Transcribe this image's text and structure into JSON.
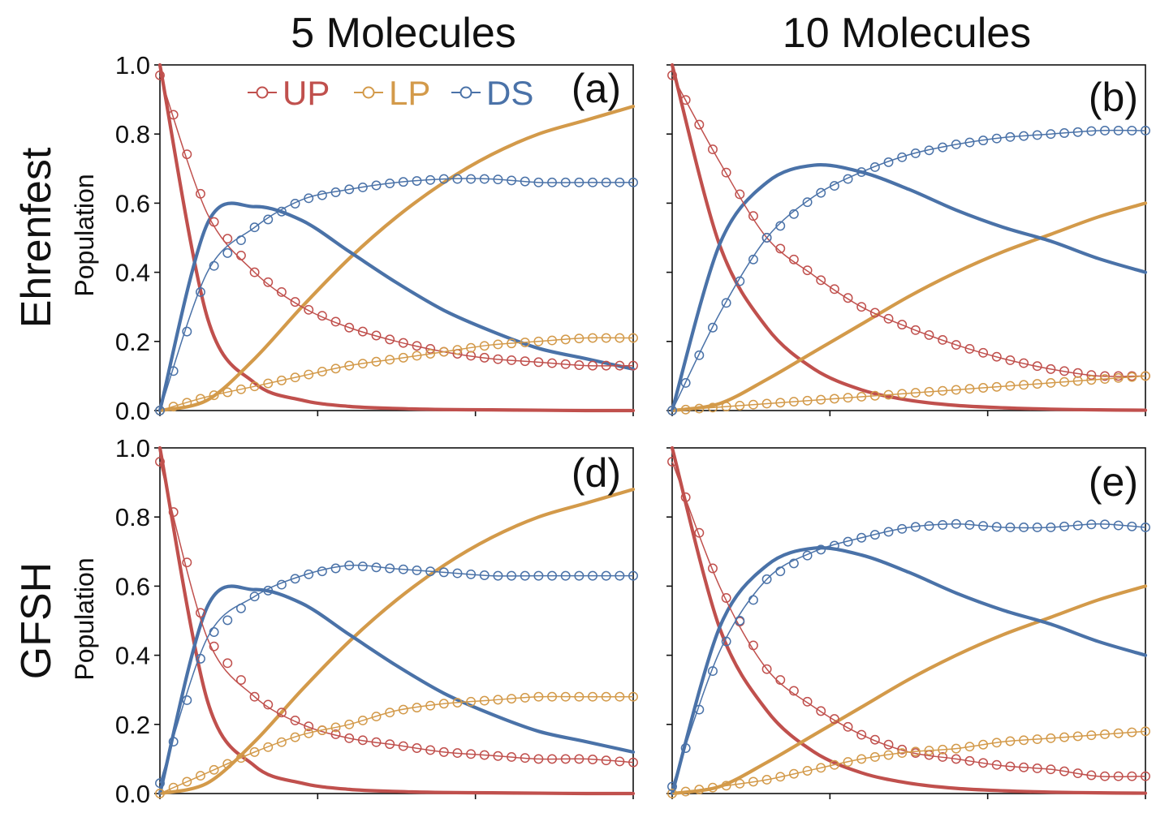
{
  "figure": {
    "col_titles": [
      "5 Molecules",
      "10 Molecules"
    ],
    "row_titles": [
      "Ehrenfest",
      "GFSH"
    ],
    "ylabel": "Population",
    "yticks": [
      "0.0",
      "0.2",
      "0.4",
      "0.6",
      "0.8",
      "1.0"
    ]
  },
  "legend": {
    "placement": "top (panel a)",
    "items": [
      {
        "label": "UP",
        "color": "#c0504d"
      },
      {
        "label": "LP",
        "color": "#d39a4a"
      },
      {
        "label": "DS",
        "color": "#4a72a8"
      }
    ]
  },
  "chart_data": [
    {
      "type": "line",
      "panel_label": "(a)",
      "ylabel": "Population",
      "ylim": [
        0,
        1
      ],
      "x": [
        0,
        0.1,
        0.2,
        0.3,
        0.4,
        0.5,
        0.6,
        0.7,
        0.8,
        0.9,
        1.0
      ],
      "series": [
        {
          "name": "UP",
          "style": "thick",
          "color": "#c0504d",
          "values": [
            1.0,
            0.27,
            0.08,
            0.03,
            0.012,
            0.006,
            0.003,
            0.002,
            0.001,
            0.0,
            0.0
          ]
        },
        {
          "name": "LP",
          "style": "thick",
          "color": "#d39a4a",
          "values": [
            0.0,
            0.03,
            0.15,
            0.3,
            0.44,
            0.56,
            0.66,
            0.74,
            0.8,
            0.84,
            0.88
          ]
        },
        {
          "name": "DS",
          "style": "thick",
          "color": "#4a72a8",
          "values": [
            0.0,
            0.54,
            0.59,
            0.55,
            0.46,
            0.37,
            0.29,
            0.23,
            0.18,
            0.15,
            0.12
          ]
        },
        {
          "name": "UP",
          "style": "marker",
          "color": "#c0504d",
          "values": [
            0.97,
            0.57,
            0.4,
            0.3,
            0.24,
            0.2,
            0.17,
            0.15,
            0.14,
            0.13,
            0.13
          ]
        },
        {
          "name": "LP",
          "style": "marker",
          "color": "#d39a4a",
          "values": [
            0.0,
            0.04,
            0.07,
            0.1,
            0.13,
            0.15,
            0.17,
            0.19,
            0.2,
            0.21,
            0.21
          ]
        },
        {
          "name": "DS",
          "style": "marker",
          "color": "#4a72a8",
          "values": [
            0.0,
            0.4,
            0.53,
            0.61,
            0.64,
            0.66,
            0.67,
            0.67,
            0.66,
            0.66,
            0.66
          ]
        }
      ]
    },
    {
      "type": "line",
      "panel_label": "(b)",
      "ylim": [
        0,
        1
      ],
      "x": [
        0,
        0.1,
        0.2,
        0.3,
        0.4,
        0.5,
        0.6,
        0.7,
        0.8,
        0.9,
        1.0
      ],
      "series": [
        {
          "name": "UP",
          "style": "thick",
          "color": "#c0504d",
          "values": [
            1.0,
            0.48,
            0.24,
            0.12,
            0.06,
            0.03,
            0.015,
            0.008,
            0.004,
            0.002,
            0.001
          ]
        },
        {
          "name": "LP",
          "style": "thick",
          "color": "#d39a4a",
          "values": [
            0.0,
            0.02,
            0.09,
            0.17,
            0.25,
            0.33,
            0.4,
            0.46,
            0.51,
            0.56,
            0.6
          ]
        },
        {
          "name": "DS",
          "style": "thick",
          "color": "#4a72a8",
          "values": [
            0.0,
            0.48,
            0.66,
            0.71,
            0.69,
            0.64,
            0.58,
            0.53,
            0.49,
            0.44,
            0.4
          ]
        },
        {
          "name": "UP",
          "style": "marker",
          "color": "#c0504d",
          "values": [
            0.97,
            0.72,
            0.5,
            0.39,
            0.3,
            0.24,
            0.19,
            0.15,
            0.12,
            0.1,
            0.1
          ]
        },
        {
          "name": "LP",
          "style": "marker",
          "color": "#d39a4a",
          "values": [
            0.0,
            0.01,
            0.02,
            0.03,
            0.04,
            0.05,
            0.06,
            0.07,
            0.08,
            0.09,
            0.1
          ]
        },
        {
          "name": "DS",
          "style": "marker",
          "color": "#4a72a8",
          "values": [
            0.0,
            0.28,
            0.5,
            0.62,
            0.69,
            0.74,
            0.77,
            0.79,
            0.8,
            0.81,
            0.81
          ]
        }
      ]
    },
    {
      "type": "line",
      "panel_label": "(d)",
      "ylabel": "Population",
      "ylim": [
        0,
        1
      ],
      "x": [
        0,
        0.1,
        0.2,
        0.3,
        0.4,
        0.5,
        0.6,
        0.7,
        0.8,
        0.9,
        1.0
      ],
      "series": [
        {
          "name": "UP",
          "style": "thick",
          "color": "#c0504d",
          "values": [
            1.0,
            0.27,
            0.08,
            0.03,
            0.012,
            0.006,
            0.003,
            0.002,
            0.001,
            0.0,
            0.0
          ]
        },
        {
          "name": "LP",
          "style": "thick",
          "color": "#d39a4a",
          "values": [
            0.0,
            0.03,
            0.15,
            0.3,
            0.44,
            0.56,
            0.66,
            0.74,
            0.8,
            0.84,
            0.88
          ]
        },
        {
          "name": "DS",
          "style": "thick",
          "color": "#4a72a8",
          "values": [
            0.0,
            0.54,
            0.59,
            0.55,
            0.46,
            0.37,
            0.29,
            0.23,
            0.18,
            0.15,
            0.12
          ]
        },
        {
          "name": "UP",
          "style": "marker",
          "color": "#c0504d",
          "values": [
            0.96,
            0.45,
            0.28,
            0.2,
            0.16,
            0.14,
            0.12,
            0.11,
            0.1,
            0.1,
            0.09
          ]
        },
        {
          "name": "LP",
          "style": "marker",
          "color": "#d39a4a",
          "values": [
            0.0,
            0.06,
            0.12,
            0.17,
            0.2,
            0.24,
            0.26,
            0.27,
            0.28,
            0.28,
            0.28
          ]
        },
        {
          "name": "DS",
          "style": "marker",
          "color": "#4a72a8",
          "values": [
            0.03,
            0.45,
            0.57,
            0.63,
            0.66,
            0.65,
            0.64,
            0.63,
            0.63,
            0.63,
            0.63
          ]
        }
      ]
    },
    {
      "type": "line",
      "panel_label": "(e)",
      "ylim": [
        0,
        1
      ],
      "x": [
        0,
        0.1,
        0.2,
        0.3,
        0.4,
        0.5,
        0.6,
        0.7,
        0.8,
        0.9,
        1.0
      ],
      "series": [
        {
          "name": "UP",
          "style": "thick",
          "color": "#c0504d",
          "values": [
            1.0,
            0.48,
            0.24,
            0.12,
            0.06,
            0.03,
            0.015,
            0.008,
            0.004,
            0.002,
            0.001
          ]
        },
        {
          "name": "LP",
          "style": "thick",
          "color": "#d39a4a",
          "values": [
            0.0,
            0.02,
            0.09,
            0.17,
            0.25,
            0.33,
            0.4,
            0.46,
            0.51,
            0.56,
            0.6
          ]
        },
        {
          "name": "DS",
          "style": "thick",
          "color": "#4a72a8",
          "values": [
            0.0,
            0.48,
            0.66,
            0.71,
            0.69,
            0.64,
            0.58,
            0.53,
            0.49,
            0.44,
            0.4
          ]
        },
        {
          "name": "UP",
          "style": "marker",
          "color": "#c0504d",
          "values": [
            0.96,
            0.6,
            0.36,
            0.25,
            0.17,
            0.12,
            0.1,
            0.08,
            0.07,
            0.05,
            0.05
          ]
        },
        {
          "name": "LP",
          "style": "marker",
          "color": "#d39a4a",
          "values": [
            0.0,
            0.02,
            0.04,
            0.07,
            0.1,
            0.12,
            0.13,
            0.15,
            0.16,
            0.17,
            0.18
          ]
        },
        {
          "name": "DS",
          "style": "marker",
          "color": "#4a72a8",
          "values": [
            0.02,
            0.41,
            0.62,
            0.7,
            0.74,
            0.77,
            0.78,
            0.77,
            0.77,
            0.78,
            0.77
          ]
        }
      ]
    }
  ]
}
